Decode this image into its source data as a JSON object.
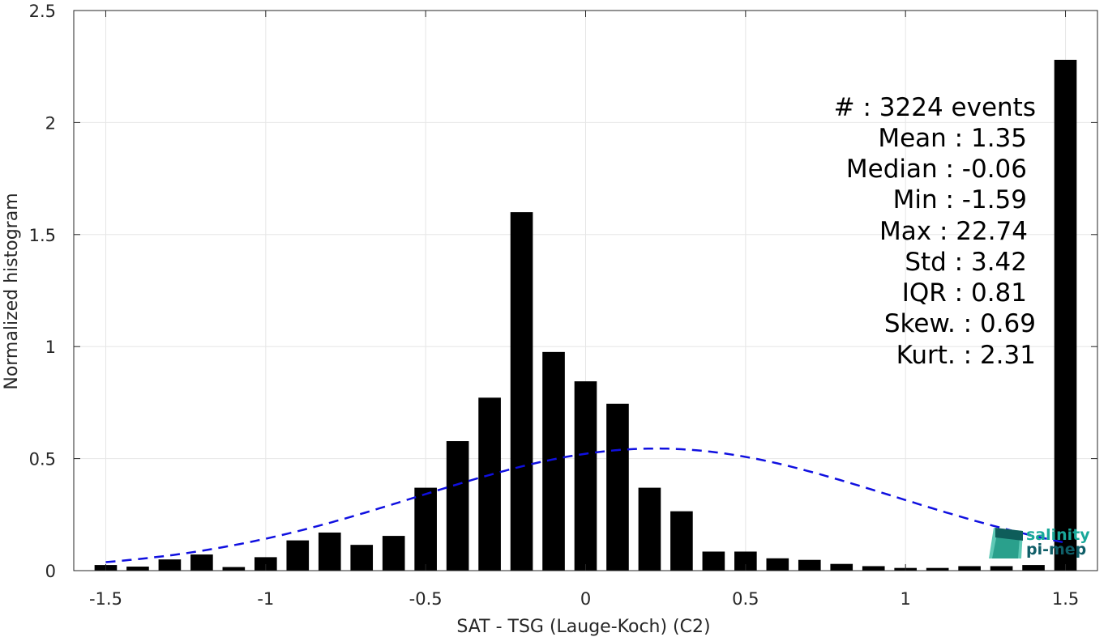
{
  "chart_data": {
    "type": "bar",
    "xlabel": "SAT - TSG (Lauge-Koch) (C2)",
    "ylabel": "Normalized histogram",
    "xlim": [
      -1.6,
      1.6
    ],
    "ylim": [
      0,
      2.5
    ],
    "x_ticks": [
      "-1.5",
      "-1",
      "-0.5",
      "0",
      "0.5",
      "1",
      "1.5"
    ],
    "x_tick_values": [
      -1.5,
      -1,
      -0.5,
      0,
      0.5,
      1,
      1.5
    ],
    "y_ticks": [
      "0",
      "0.5",
      "1",
      "1.5",
      "2",
      "2.5"
    ],
    "y_tick_values": [
      0,
      0.5,
      1,
      1.5,
      2,
      2.5
    ],
    "grid": true,
    "bar_color": "#000000",
    "curve_color": "#1010e0",
    "bars": {
      "x": [
        -1.5,
        -1.4,
        -1.3,
        -1.2,
        -1.1,
        -1.0,
        -0.9,
        -0.8,
        -0.7,
        -0.6,
        -0.5,
        -0.4,
        -0.3,
        -0.2,
        -0.1,
        0.0,
        0.1,
        0.2,
        0.3,
        0.4,
        0.5,
        0.6,
        0.7,
        0.8,
        0.9,
        1.0,
        1.1,
        1.2,
        1.3,
        1.4,
        1.5
      ],
      "values": [
        0.025,
        0.018,
        0.05,
        0.072,
        0.016,
        0.06,
        0.135,
        0.17,
        0.115,
        0.155,
        0.37,
        0.578,
        0.772,
        1.6,
        0.976,
        0.845,
        0.745,
        0.37,
        0.265,
        0.085,
        0.085,
        0.055,
        0.048,
        0.03,
        0.02,
        0.012,
        0.012,
        0.02,
        0.02,
        0.025,
        2.28
      ]
    },
    "fit_curve": {
      "style": "dashed",
      "mean": 0.22,
      "std": 0.745,
      "peak": 0.545,
      "x_range": [
        -1.5,
        1.5
      ]
    },
    "stats": [
      {
        "label": "#  : 3224 events"
      },
      {
        "label": "Mean : 1.35"
      },
      {
        "label": "Median : -0.06"
      },
      {
        "label": "Min : -1.59"
      },
      {
        "label": "Max : 22.74"
      },
      {
        "label": "Std : 3.42"
      },
      {
        "label": "IQR : 0.81"
      },
      {
        "label": "Skew. : 0.69"
      },
      {
        "label": "Kurt. : 2.31"
      }
    ],
    "logo": {
      "line1": "salinity",
      "line2": "pi-mep",
      "color1": "#1aa89a",
      "color2": "#0f5e68"
    }
  }
}
